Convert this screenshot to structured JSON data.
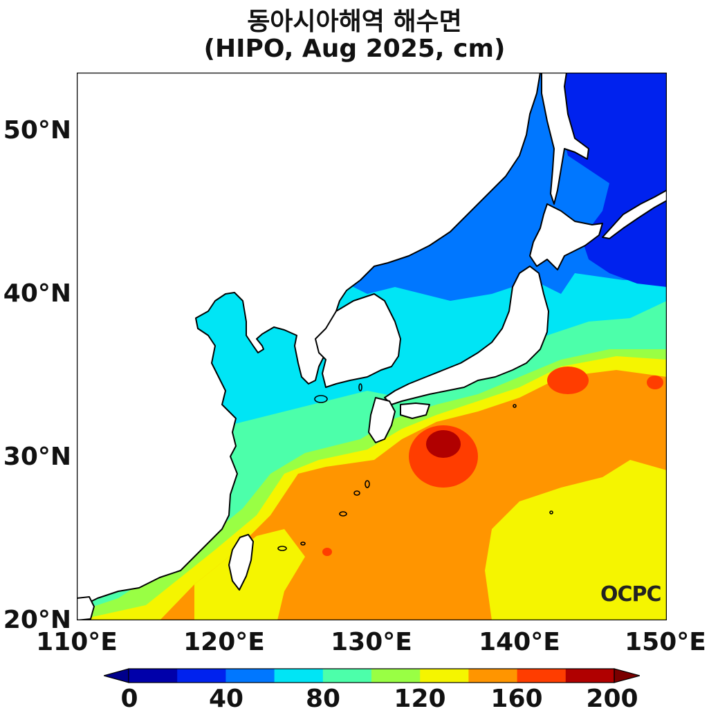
{
  "title": "동아시아해역 해수면",
  "subtitle": "(HIPO, Aug 2025, cm)",
  "logo_text": "OCPC",
  "lat_ticks": [
    "50°N",
    "40°N",
    "30°N",
    "20°N"
  ],
  "lon_ticks": [
    "110°E",
    "120°E",
    "130°E",
    "140°E",
    "150°E"
  ],
  "map_extent": {
    "lon": [
      110,
      150
    ],
    "lat": [
      20,
      53.5
    ]
  },
  "colorbar": {
    "ticks": [
      "0",
      "40",
      "80",
      "120",
      "160",
      "200"
    ],
    "levels": [
      0,
      20,
      40,
      60,
      80,
      100,
      120,
      140,
      160,
      180,
      200
    ],
    "colors": [
      "#0000aa",
      "#0022ee",
      "#0077ff",
      "#00e5f5",
      "#4cffaa",
      "#99ff44",
      "#f5f500",
      "#ff9500",
      "#ff3d00",
      "#b00000"
    ],
    "under_color": "#00008b",
    "over_color": "#7a0000"
  },
  "colors": {
    "land": "#ffffff",
    "coast": "#000000"
  }
}
